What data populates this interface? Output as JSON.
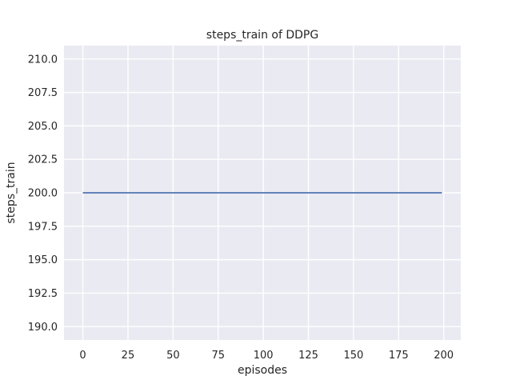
{
  "chart_data": {
    "type": "line",
    "title": "steps_train of DDPG",
    "xlabel": "episodes",
    "ylabel": "steps_train",
    "xlim": [
      -10.45,
      209.45
    ],
    "ylim": [
      189,
      211
    ],
    "xticks": [
      0,
      25,
      50,
      75,
      100,
      125,
      150,
      175,
      200
    ],
    "xtick_labels": [
      "0",
      "25",
      "50",
      "75",
      "100",
      "125",
      "150",
      "175",
      "200"
    ],
    "yticks": [
      190.0,
      192.5,
      195.0,
      197.5,
      200.0,
      202.5,
      205.0,
      207.5,
      210.0
    ],
    "ytick_labels": [
      "190.0",
      "192.5",
      "195.0",
      "197.5",
      "200.0",
      "202.5",
      "205.0",
      "207.5",
      "210.0"
    ],
    "grid": true,
    "legend": false,
    "series": [
      {
        "name": "steps_train",
        "color": "#4C72B0",
        "x": [
          0,
          199
        ],
        "y": [
          200,
          200
        ],
        "description": "constant value 200 for every episode from 0 to 199"
      }
    ],
    "style": {
      "figure_bg": "#FFFFFF",
      "plot_bg": "#EAEAF2",
      "grid_color": "#FFFFFF",
      "text_color": "#262626",
      "grid_width": 1.4,
      "line_width": 1.8
    }
  }
}
